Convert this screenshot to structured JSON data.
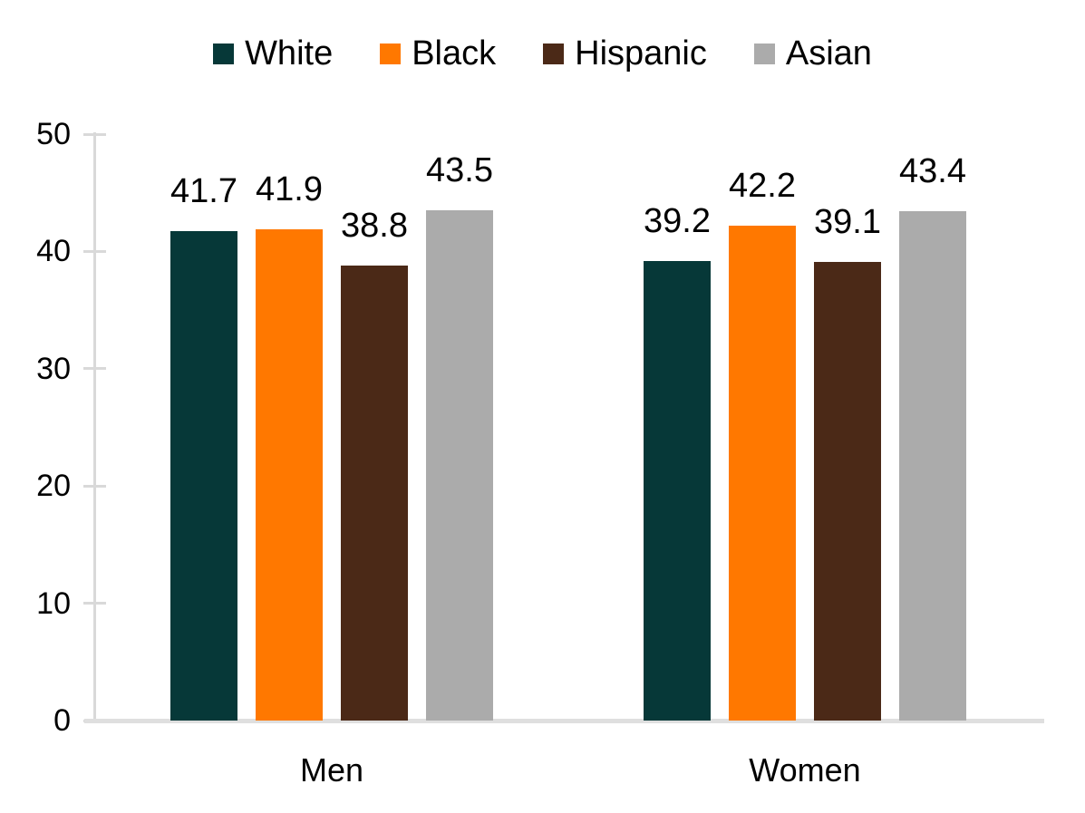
{
  "chart_data": {
    "type": "bar",
    "title": "",
    "xlabel": "",
    "ylabel": "",
    "categories": [
      "Men",
      "Women"
    ],
    "series": [
      {
        "name": "White",
        "color": "#063838",
        "values": [
          41.7,
          39.2
        ]
      },
      {
        "name": "Black",
        "color": "#ff7800",
        "values": [
          41.9,
          42.2
        ]
      },
      {
        "name": "Hispanic",
        "color": "#4b2917",
        "values": [
          38.8,
          39.1
        ]
      },
      {
        "name": "Asian",
        "color": "#ababab",
        "values": [
          43.5,
          43.4
        ]
      }
    ],
    "ylim": [
      0,
      50
    ],
    "yticks": [
      0,
      10,
      20,
      30,
      40,
      50
    ],
    "grid": false,
    "legend_position": "top",
    "value_labels": true,
    "axis_color": "#d9d9d9",
    "text_color": "#000000"
  }
}
